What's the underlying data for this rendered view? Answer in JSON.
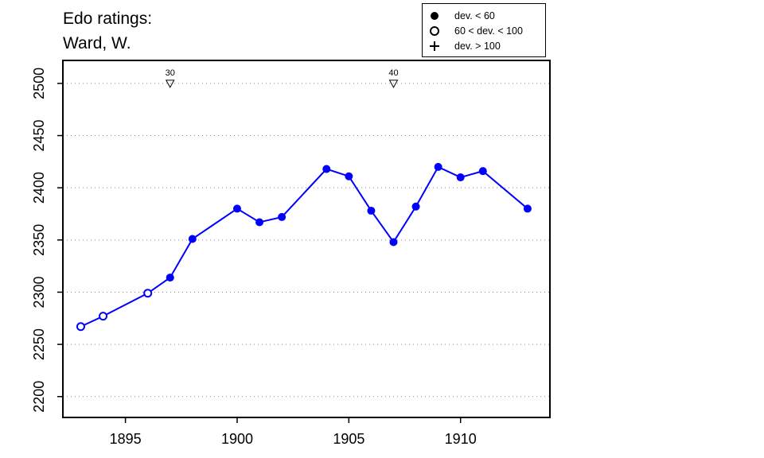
{
  "chart_data": {
    "type": "line",
    "title_lines": [
      "Edo ratings:",
      "Ward, W."
    ],
    "xlabel": "",
    "ylabel": "",
    "xlim": [
      1892.2,
      1914.0
    ],
    "ylim": [
      2180,
      2522
    ],
    "x_ticks": [
      1895,
      1900,
      1905,
      1910
    ],
    "y_ticks": [
      2200,
      2250,
      2300,
      2350,
      2400,
      2450,
      2500
    ],
    "grid": "horizontal-dotted",
    "series_color": "#0000ff",
    "points": [
      {
        "x": 1893,
        "y": 2267,
        "marker": "open"
      },
      {
        "x": 1894,
        "y": 2277,
        "marker": "open"
      },
      {
        "x": 1896,
        "y": 2299,
        "marker": "open"
      },
      {
        "x": 1897,
        "y": 2314,
        "marker": "filled"
      },
      {
        "x": 1898,
        "y": 2351,
        "marker": "filled"
      },
      {
        "x": 1900,
        "y": 2380,
        "marker": "filled"
      },
      {
        "x": 1901,
        "y": 2367,
        "marker": "filled"
      },
      {
        "x": 1902,
        "y": 2372,
        "marker": "filled"
      },
      {
        "x": 1904,
        "y": 2418,
        "marker": "filled"
      },
      {
        "x": 1905,
        "y": 2411,
        "marker": "filled"
      },
      {
        "x": 1906,
        "y": 2378,
        "marker": "filled"
      },
      {
        "x": 1907,
        "y": 2348,
        "marker": "filled"
      },
      {
        "x": 1908,
        "y": 2382,
        "marker": "filled"
      },
      {
        "x": 1909,
        "y": 2420,
        "marker": "filled"
      },
      {
        "x": 1910,
        "y": 2410,
        "marker": "filled"
      },
      {
        "x": 1911,
        "y": 2416,
        "marker": "filled"
      },
      {
        "x": 1913,
        "y": 2380,
        "marker": "filled"
      }
    ],
    "age_markers": [
      {
        "x": 1897,
        "label": "30"
      },
      {
        "x": 1907,
        "label": "40"
      }
    ],
    "legend": {
      "position": "top-right",
      "items": [
        {
          "symbol": "filled",
          "label": "dev. < 60"
        },
        {
          "symbol": "open",
          "label": "60 < dev. < 100"
        },
        {
          "symbol": "plus",
          "label": "dev. > 100"
        }
      ]
    }
  }
}
